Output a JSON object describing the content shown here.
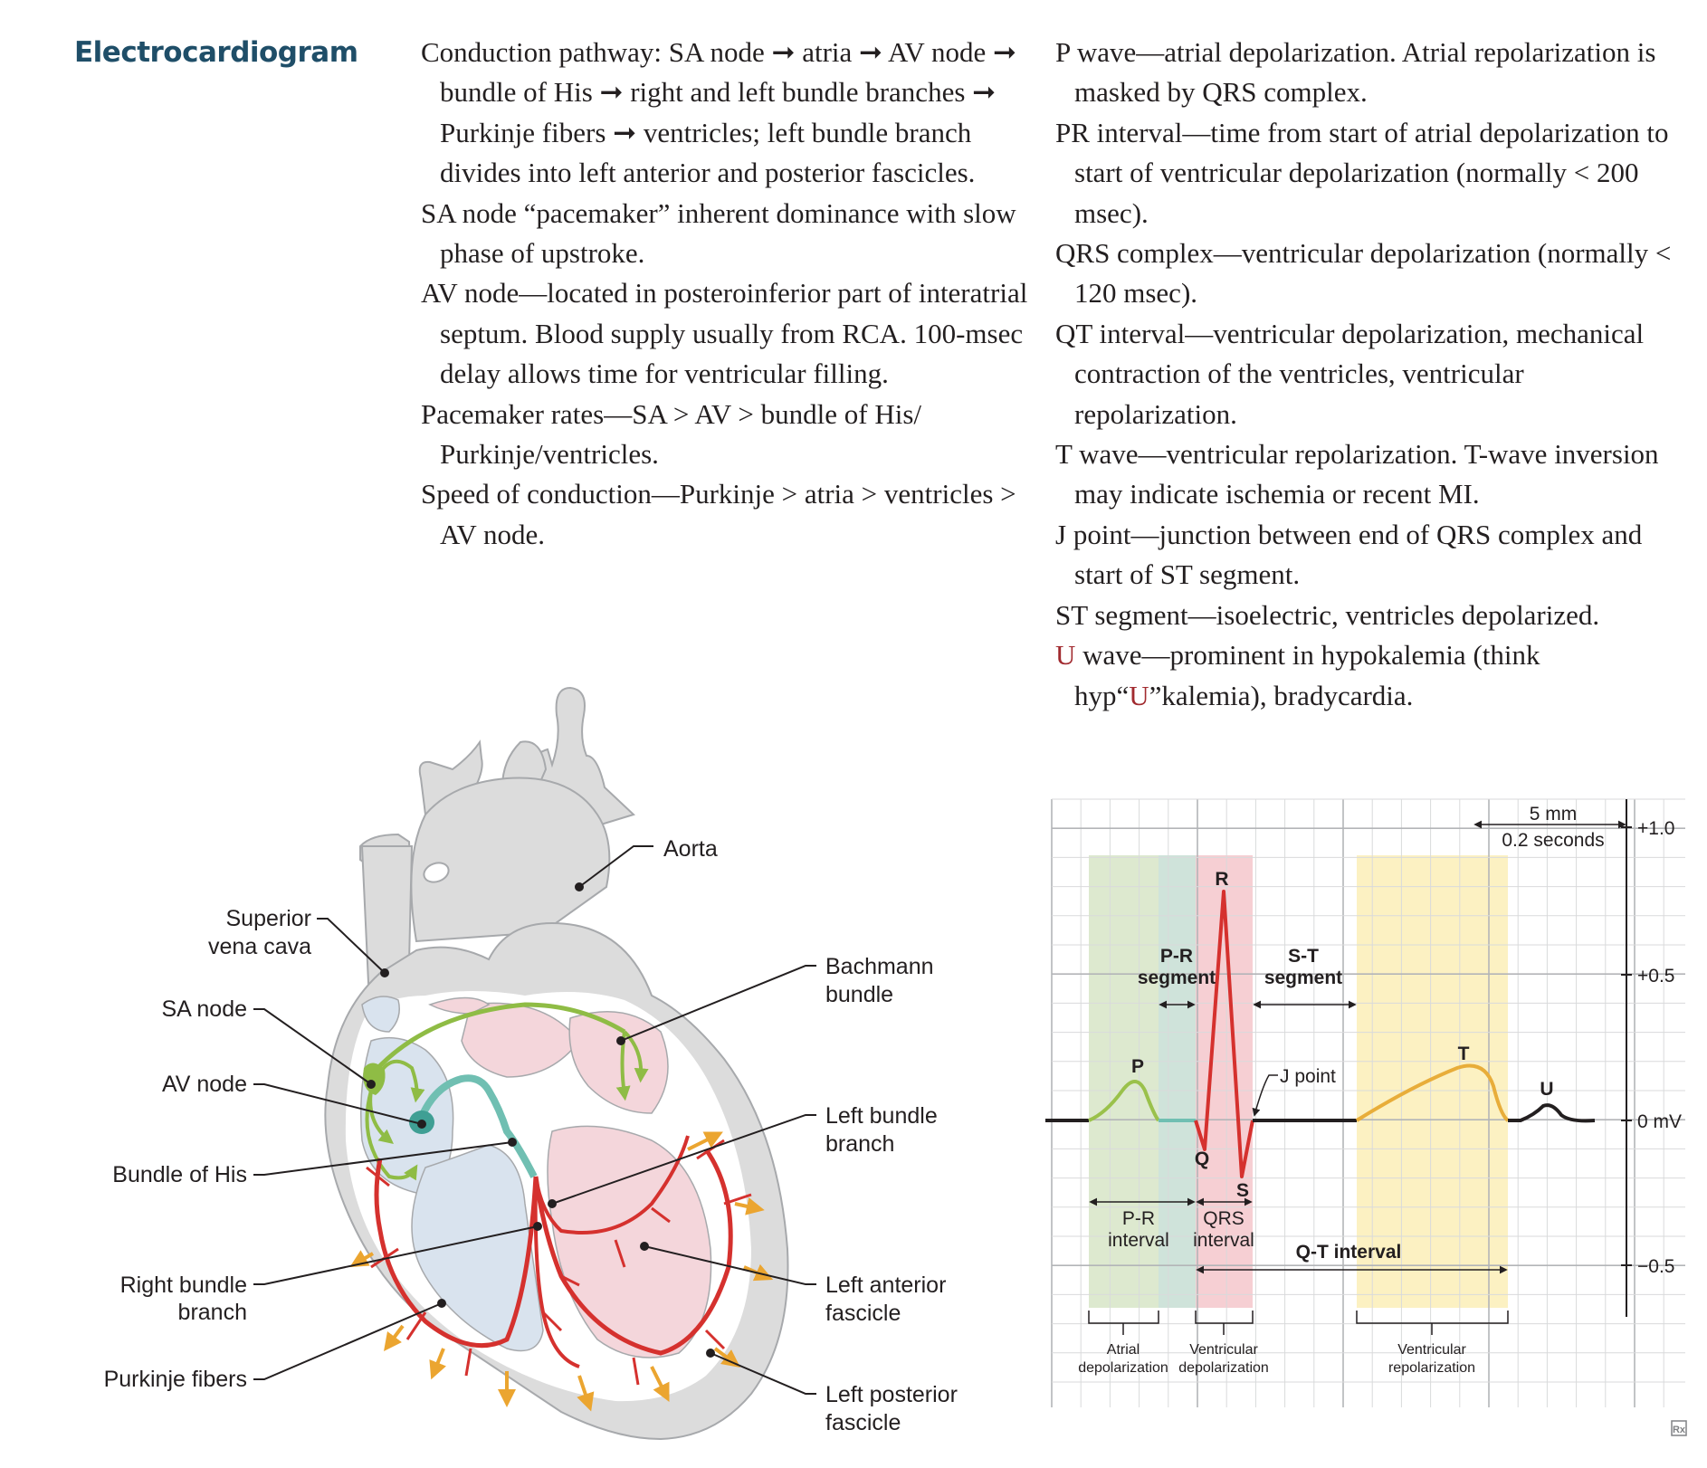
{
  "section_title": "Electrocardiogram",
  "col1": [
    "Conduction pathway: SA node ➞ atria ➞ AV node ➞ bundle of His ➞ right and left bundle branches ➞ Purkinje fibers ➞ ventricles; left bundle branch divides into left anterior and posterior fascicles.",
    "SA node “pacemaker” inherent dominance with slow phase of upstroke.",
    "AV node—located in posteroinferior part of interatrial septum. Blood supply usually from RCA. 100-msec delay allows time for ventricular filling.",
    "Pacemaker rates—SA > AV > bundle of His/ Purkinje/ventricles.",
    "Speed of conduction—Purkinje > atria > ventricles > AV node."
  ],
  "col2": [
    "P wave—atrial depolarization. Atrial repolarization is masked by QRS complex.",
    "PR interval—time from start of atrial depolarization to start of ventricular depolarization (normally < 200 msec).",
    "QRS complex—ventricular depolarization (normally < 120 msec).",
    "QT interval—ventricular depolarization, mechanical contraction of the ventricles, ventricular repolarization.",
    "T wave—ventricular repolarization. T-wave inversion may indicate ischemia or recent MI.",
    "J point—junction between end of QRS complex and start of ST segment.",
    "ST segment—isoelectric, ventricles depolarized."
  ],
  "col2_last": {
    "u1": "U",
    "a": " wave—prominent in hypokalemia (think hyp“",
    "u2": "U",
    "b": "”kalemia), bradycardia."
  },
  "heart_labels": {
    "aorta": "Aorta",
    "svc1": "Superior",
    "svc2": "vena cava",
    "sa": "SA node",
    "av": "AV node",
    "his": "Bundle of His",
    "rbb1": "Right bundle",
    "rbb2": "branch",
    "purk": "Purkinje fibers",
    "bach1": "Bachmann",
    "bach2": "bundle",
    "lbb1": "Left bundle",
    "lbb2": "branch",
    "laf1": "Left anterior",
    "laf2": "fascicle",
    "lpf1": "Left posterior",
    "lpf2": "fascicle"
  },
  "ecg": {
    "scale1": "5 mm",
    "scale2": "0.2 seconds",
    "y_ticks": [
      "+1.0",
      "+0.5",
      "0 mV",
      "−0.5"
    ],
    "waves": {
      "p": "P",
      "q": "Q",
      "r": "R",
      "s": "S",
      "t": "T",
      "u": "U"
    },
    "pr_seg1": "P-R",
    "pr_seg2": "segment",
    "st_seg1": "S-T",
    "st_seg2": "segment",
    "jpoint": "J point",
    "pr_int1": "P-R",
    "pr_int2": "interval",
    "qrs_int1": "QRS",
    "qrs_int2": "interval",
    "qt_int": "Q-T interval",
    "atrial_dep1": "Atrial",
    "atrial_dep2": "depolarization",
    "vent_dep1": "Ventricular",
    "vent_dep2": "depolarization",
    "vent_rep1": "Ventricular",
    "vent_rep2": "repolarization",
    "logo": "Rx",
    "colors": {
      "atrial": "#dde9cf",
      "pr_segment": "#cfe3da",
      "qrs": "#f6cfd3",
      "tzone": "#fcf1c2",
      "p_wave": "#9ac14b",
      "qrs_wave": "#d5312e",
      "t_wave": "#e8ad3a"
    }
  }
}
